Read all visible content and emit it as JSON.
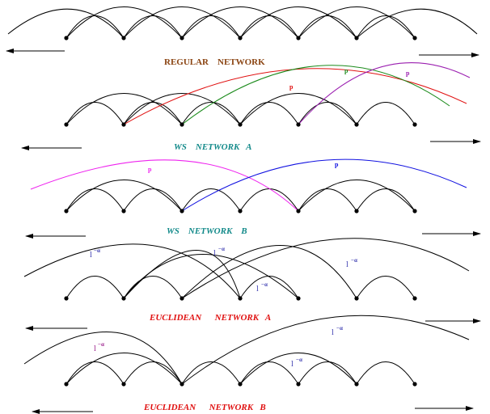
{
  "titles": {
    "regular": "REGULAR    NETWORK",
    "ws_a": "WS    NETWORK   A",
    "ws_b": "WS    NETWORK    B",
    "euc_a": "EUCLIDEAN      NETWORK   A",
    "euc_b": "EUCLIDEAN      NETWORK   B"
  },
  "labels": {
    "p": "p",
    "l": "l",
    "alpha_exp": "−α"
  },
  "colors": {
    "regular_title": "#8b4513",
    "ws_title": "#138a8a",
    "euc_title": "#e01010",
    "shortcut_red": "#e01010",
    "shortcut_green": "#1a8a1a",
    "shortcut_purple": "#9b1fb0",
    "shortcut_magenta": "#ee22ee",
    "shortcut_blue": "#1010e0",
    "label_blue": "#3a3ab0",
    "label_purple": "#9b1f8c"
  }
}
